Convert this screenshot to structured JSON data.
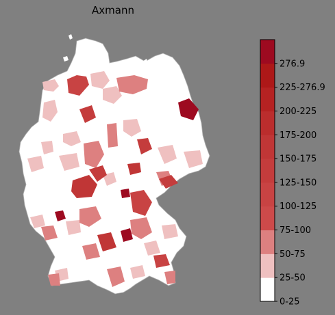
{
  "title": "Axmann",
  "colorbar": {
    "max_label": "276.9",
    "bins": [
      {
        "label": "0-25",
        "color": "#ffffff"
      },
      {
        "label": "25-50",
        "color": "#efc0c0"
      },
      {
        "label": "50-75",
        "color": "#dd8080"
      },
      {
        "label": "75-100",
        "color": "#cd4a4a"
      },
      {
        "label": "100-125",
        "color": "#c84343"
      },
      {
        "label": "125-150",
        "color": "#c43c3c"
      },
      {
        "label": "150-175",
        "color": "#c03636"
      },
      {
        "label": "175-200",
        "color": "#bb2d2d"
      },
      {
        "label": "200-225",
        "color": "#b52222"
      },
      {
        "label": "225-276.9",
        "color": "#ad1818"
      },
      {
        "label": "",
        "color": "#9d0a20"
      }
    ],
    "extra_top_color": "#9a0820"
  },
  "map": {
    "land_color": "#ffffff",
    "border_color": "#d0d0d0",
    "background": "#808080"
  }
}
